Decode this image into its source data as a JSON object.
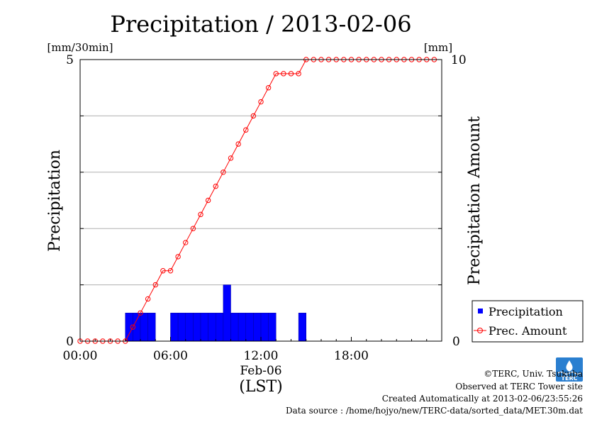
{
  "chart_data": {
    "type": "bar+line",
    "title": "Precipitation / 2013-02-06",
    "left_unit": "[mm/30min]",
    "right_unit": "[mm]",
    "ylabel_left": "Precipitation",
    "ylabel_right": "Precipitation Amount",
    "xlabel_date": "Feb-06",
    "xlabel_zone": "(LST)",
    "y_left_range": [
      0,
      5
    ],
    "y_right_range": [
      0,
      10
    ],
    "y_left_ticks": [
      "0",
      "5"
    ],
    "y_right_ticks": [
      "0",
      "10"
    ],
    "x_ticks": [
      {
        "label": "00:00",
        "hour": 0
      },
      {
        "label": "06:00",
        "hour": 6
      },
      {
        "label": "12:00",
        "hour": 12
      },
      {
        "label": "18:00",
        "hour": 18
      }
    ],
    "x_range_hours": [
      0,
      24
    ],
    "grid": "horizontal",
    "legend_position": "right",
    "series": [
      {
        "name": "Precipitation",
        "kind": "bar",
        "unit": "mm/30min",
        "color": "#0000ff",
        "interval_hours": 0.5,
        "values": [
          0,
          0,
          0,
          0,
          0,
          0,
          0.5,
          0.5,
          0.5,
          0.5,
          0,
          0,
          0.5,
          0.5,
          0.5,
          0.5,
          0.5,
          0.5,
          0.5,
          1.0,
          0.5,
          0.5,
          0.5,
          0.5,
          0.5,
          0.5,
          0,
          0,
          0,
          0.5,
          0,
          0,
          0,
          0,
          0,
          0,
          0,
          0,
          0,
          0,
          0,
          0,
          0,
          0,
          0,
          0,
          0,
          0
        ]
      },
      {
        "name": "Prec. Amount",
        "kind": "line",
        "unit": "mm",
        "color": "#ff0000",
        "interval_hours": 0.5,
        "values": [
          0,
          0,
          0,
          0,
          0,
          0,
          0,
          0.5,
          1.0,
          1.5,
          2.0,
          2.5,
          2.5,
          3.0,
          3.5,
          4.0,
          4.5,
          5.0,
          5.5,
          6.0,
          6.5,
          7.0,
          7.5,
          8.0,
          8.5,
          9.0,
          9.5,
          9.5,
          9.5,
          9.5,
          10,
          10,
          10,
          10,
          10,
          10,
          10,
          10,
          10,
          10,
          10,
          10,
          10,
          10,
          10,
          10,
          10,
          10
        ]
      }
    ]
  },
  "footer": {
    "copyright": "©TERC, Univ. Tsukuba",
    "observed": "Observed at TERC Tower site",
    "created": "Created Automatically at 2013-02-06/23:55:26",
    "source": "Data source : /home/hojyo/new/TERC-data/sorted_data/MET.30m.dat",
    "logo_text": "TERC"
  }
}
